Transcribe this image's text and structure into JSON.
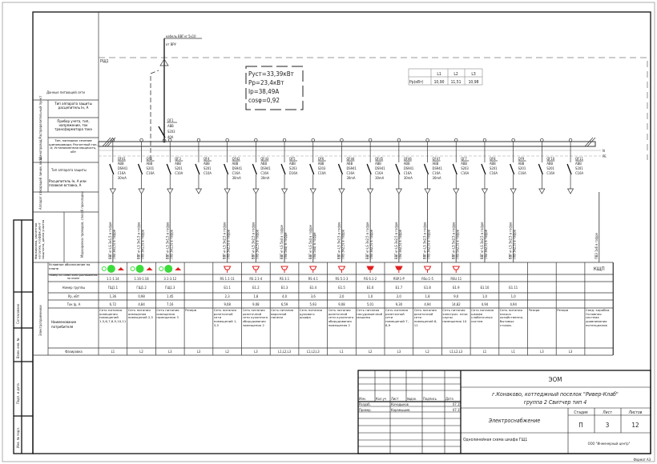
{
  "panel": {
    "name": "РЩ1",
    "supply_cable": "кабель ВВГнг 5х10",
    "supply_from": "от ВРУ",
    "main_breaker": [
      "QF1",
      "ABB",
      "S203",
      "40A"
    ],
    "bus_labels": {
      "n": "N",
      "pe": "PE"
    },
    "summary": [
      "Руст=33,39кВт",
      "Рр=23,4кВт",
      "Iр=38,49А",
      "cosφ=0,92"
    ],
    "phase_table": {
      "headers": [
        "",
        "L1",
        "L2",
        "L3"
      ],
      "row_label": "Рр(кВт)",
      "values": [
        "10,90",
        "11,51",
        "10,98"
      ]
    }
  },
  "row_labels": {
    "supply": "Данные питающей сети",
    "protection_type": "Тип аппарата защиты расцепитель Iн, А",
    "meter": "Прибор учета, тип, напряжение, ток трансформатора тока",
    "busbar": "Тип, материал сечение шинопровода; Расчетный ток, А; Установленная мощность, кВт",
    "busbar_group": "Шинопровод/Распределительный пункт",
    "outgoing_type": "Тип аппарата защиты",
    "release": "Расцепитель Iн, А или плавкая вставка, А",
    "outgoing_group": "Аппарат отходящей линии, ввод",
    "marking_group": "Маркировка, расчетная нагрузка, коэффициент мощности, длина участка",
    "cable_marking": "Маркировка проводов, способ прокладки",
    "consumers_group": "Электроприемники",
    "symbol": "Условное обозначение на плане",
    "plan_number": "Номер по схеме электроснабжения на плане",
    "group": "Номер группы",
    "power": "Рр, кВт",
    "current": "Ток Iр, А",
    "name": "Наименование потребителя",
    "phase": "Фазировка"
  },
  "feeders": [
    {
      "breaker": [
        "QFd1",
        "ABB",
        "DS941",
        "C16A",
        "30mA"
      ],
      "cable": [
        "ВВГнг-LS 3х1,5 в гофре",
        "(ПВ 3х1,5) в гофре"
      ],
      "symbol": "light",
      "plan": "1.1-1.14",
      "group": "ГЩ1.1",
      "p": "1,36",
      "i": "6,72",
      "name": "Сеть питания освещения помещений 1,5,6,7,8,9,10,11",
      "phase": "L1"
    },
    {
      "breaker": [
        "QF2",
        "ABB",
        "S201",
        "C16A"
      ],
      "cable": [
        "ВВГнг-LS 3х1,5 в гофре",
        "(ПВ 3х1,5) в гофре"
      ],
      "symbol": "light",
      "plan": "1.16-1.18",
      "group": "ГЩ1.2",
      "p": "0,98",
      "i": "4,84",
      "name": "Сеть питания освещения помещений 2,5",
      "phase": "L2"
    },
    {
      "breaker": [
        "QF3",
        "ABB",
        "S201",
        "C10A"
      ],
      "cable": [
        "ВВГнг-LS 3х1,5 в гофре",
        "(ПВ 3х1,5) в гофре"
      ],
      "symbol": "light",
      "plan": "3.1-3.12",
      "group": "ГЩ1.3",
      "p": "1,45",
      "i": "7,16",
      "name": "Сеть питания освещения помещения 3",
      "phase": "L3"
    },
    {
      "breaker": [
        "QF4",
        "ABB",
        "S201",
        "C10A"
      ],
      "cable": null,
      "symbol": "",
      "plan": "",
      "group": "",
      "p": "",
      "i": "",
      "name": "Резерв",
      "phase": "L3"
    },
    {
      "breaker": [
        "QFd2",
        "ABB",
        "DS941",
        "C16A",
        "30mA"
      ],
      "cable": [
        "ВВГнг-LS 3х2,5 в гофре",
        "(ПВ 3х2,5) в гофре"
      ],
      "symbol": "socket",
      "plan": "RS 1.1-11",
      "group": "Б1.1",
      "p": "2,3",
      "i": "9,08",
      "name": "Сеть питания розеточной сети помещений 1, 3,5",
      "phase": "L2"
    },
    {
      "breaker": [
        "QFd3",
        "ABB",
        "DS941",
        "C16A",
        "30mA"
      ],
      "cable": [
        "ВВГнг-LS 3х2,5 в гофре",
        "(ПВ 3х2,5) в гофре"
      ],
      "symbol": "socket",
      "plan": "RS 2.1-4",
      "group": "Б1.2",
      "p": "1,8",
      "i": "9,08",
      "name": "Сеть питания розеточной сети кухонного оборудования помещения 2",
      "phase": "L3"
    },
    {
      "breaker": [
        "QF5",
        "ABB",
        "S203",
        "D16A"
      ],
      "cable": [
        "ВВГнг-LS 5х4 в гофре",
        "(ПВ 5х4) в гофре"
      ],
      "symbol": "socket3",
      "plan": "RS 3.1",
      "group": "Б1.3",
      "p": "4,0",
      "i": "6,59",
      "name": "Сеть питания варочной панели",
      "phase": "L1,L2,L3"
    },
    {
      "breaker": [
        "QF6",
        "ABB",
        "S203",
        "C10A"
      ],
      "cable": [
        "ВВГнг-LS 5х4 в гофре",
        "(ПВ 5х4) в гофре"
      ],
      "symbol": "socket3",
      "plan": "RS 4.1",
      "group": "Б1.4",
      "p": "3,6",
      "i": "5,93",
      "name": "Сеть питания духового шкафа",
      "phase": "L1,L2,L3"
    },
    {
      "breaker": [
        "QFd4",
        "ABB",
        "DS941",
        "C16A",
        "30mA"
      ],
      "cable": [
        "ВВГнг-LS 3х2,5 в гофре",
        "(ПВ 3х2,5) в гофре"
      ],
      "symbol": "socket",
      "plan": "RS 5.1-3",
      "group": "Б1.5",
      "p": "2,0",
      "i": "9,08",
      "name": "Сеть питания розеточной сети кухонного оборудования помещения 2",
      "phase": "L1"
    },
    {
      "breaker": [
        "QFd5",
        "ABB",
        "DS941",
        "C16A",
        "30mA"
      ],
      "cable": [
        "ВВГнг-LS 3х2,5 в гофре",
        "(ПВ 3х2,5) в гофре"
      ],
      "symbol": "socket-filled",
      "plan": "RS 6.1-2",
      "group": "Б1.6",
      "p": "1,0",
      "i": "5,01",
      "name": "Сеть питания посудомоечной машины",
      "phase": "L2"
    },
    {
      "breaker": [
        "QFd6",
        "ABB",
        "DS941",
        "C16A",
        "30mA"
      ],
      "cable": [
        "ВВГнг-LS 3х2,5 в гофре",
        "(ПВ 3х2,5) в гофре"
      ],
      "symbol": "socket-filled",
      "plan": "RSP.1-P",
      "group": "Б1.7",
      "p": "2,0",
      "i": "9,30",
      "name": "Сеть питания розеточной сети помещений 7, 8,9",
      "phase": "L3"
    },
    {
      "breaker": [
        "QFd7",
        "ABB",
        "DS941",
        "C16A",
        "30mA"
      ],
      "cable": [
        "ВВГнг-LS 3х2,5 в гофре",
        "(ПВ 3х2,5) в гофре"
      ],
      "symbol": "socket",
      "plan": "RSo.1-5",
      "group": "Б1.8",
      "p": "1,8",
      "i": "4,94",
      "name": "Сеть питания розеточной сети помещений 6, 11",
      "phase": "L2"
    },
    {
      "breaker": [
        "QF7",
        "ABB",
        "S203",
        "C16A"
      ],
      "cable": [
        "ВВГнг-LS 5х2,5 в гофре",
        "(ПВ 5х2,5) в гофре"
      ],
      "symbol": "socket3",
      "plan": "RSU.11",
      "group": "Б1.9",
      "p": "9,0",
      "i": "14,82",
      "name": "Сеть питания электрич. печи сауны помещения 10",
      "phase": "L1,L2,L3"
    },
    {
      "breaker": [
        "QF8",
        "ABB",
        "S201",
        "C16A"
      ],
      "cable": [
        "ВВГнг-LS 3х2,5 в гофре",
        "(ПВ 3х2,5) в гофре"
      ],
      "symbol": "",
      "plan": "",
      "group": "Б1.10",
      "p": "1,0",
      "i": "4,94",
      "name": "Сеть питания шкафа слаботочных систем",
      "phase": "L1"
    },
    {
      "breaker": [
        "QF9",
        "ABB",
        "S201",
        "C16A"
      ],
      "cable": [
        "ВВГнг-LS 3х2,5 в гофре",
        "(ПВ 3х2,5) в гофре"
      ],
      "symbol": "",
      "plan": "",
      "group": "Б1.11",
      "p": "1,0",
      "i": "4,94",
      "name": "Сеть питания насоса хозяйственно-бытовых стоков.",
      "phase": "L1"
    },
    {
      "breaker": [
        "QF10",
        "ABB",
        "S201",
        "C16A"
      ],
      "cable": null,
      "symbol": "",
      "plan": "",
      "group": "",
      "p": "",
      "i": "",
      "name": "Резерв",
      "phase": "L3"
    },
    {
      "breaker": [
        "QF11",
        "ABB",
        "S201",
        "C16A"
      ],
      "cable": null,
      "symbol": "",
      "plan": "",
      "group": "",
      "p": "",
      "i": "",
      "name": "Резерв",
      "phase": "L3"
    },
    {
      "breaker": null,
      "cable": [
        "ПВ3 1х6 в гофре"
      ],
      "symbol": "КЩП",
      "plan": "",
      "group": "",
      "p": "",
      "i": "",
      "name": "Соед. коробка. Основная система уравнивания потенциалов",
      "phase": ""
    }
  ],
  "side_stamp": [
    "Согласовано",
    "Взам. инв. №",
    "Подп. и дата",
    "Инв. № подл."
  ],
  "title_block": {
    "headers": [
      "Изм.",
      "Кол.уч",
      "Лист",
      "№док.",
      "Подпись",
      "Дата"
    ],
    "rows": [
      {
        "role": "Разраб.",
        "name": "Кочедыков",
        "date": "07.15"
      },
      {
        "role": "Провер.",
        "name": "Карамышев",
        "date": "07.15"
      }
    ],
    "code": "ЭОМ",
    "project_line1": "г.Конаково, коттеджный поселок \"Ривер-Клаб\"",
    "project_line2": "группа 2 Свитчер тип 4",
    "section": "Электроснабжение",
    "stage_label": "Стадия",
    "sheet_label": "Лист",
    "sheets_label": "Листов",
    "stage": "П",
    "sheet": "3",
    "sheets": "12",
    "drawing_name": "Однолинейная схема шкафа ГЩ1",
    "company": "ООО \"Инженерный центр\"",
    "format": "Формат А3"
  },
  "colors": {
    "lighting": "#3ddc3d",
    "socket": "#e02020",
    "line": "#333333"
  }
}
